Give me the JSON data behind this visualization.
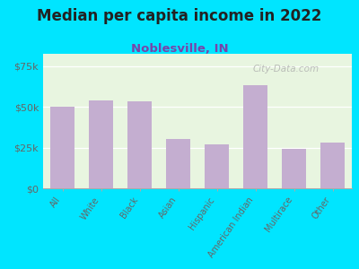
{
  "title": "Median per capita income in 2022",
  "subtitle": "Noblesville, IN",
  "categories": [
    "All",
    "White",
    "Black",
    "Asian",
    "Hispanic",
    "American Indian",
    "Multirace",
    "Other"
  ],
  "values": [
    50000,
    54000,
    53500,
    30000,
    27000,
    63000,
    24000,
    28000
  ],
  "bar_color": "#c4aed0",
  "background_outer": "#00e5ff",
  "background_chart_top": "#e8f5e0",
  "background_chart_bottom": "#f8fff0",
  "title_color": "#222222",
  "subtitle_color": "#7744aa",
  "tick_label_color": "#666666",
  "axis_label_color": "#666666",
  "watermark": "City-Data.com",
  "ylim": [
    0,
    82500
  ],
  "yticks": [
    0,
    25000,
    50000,
    75000
  ],
  "ytick_labels": [
    "$0",
    "$25k",
    "$50k",
    "$75k"
  ]
}
